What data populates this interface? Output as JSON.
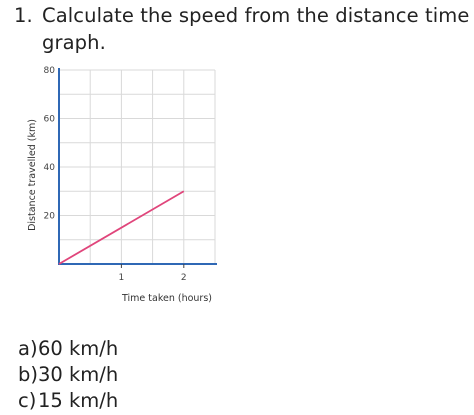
{
  "question": {
    "number": "1.",
    "text": "Calculate the speed from the distance time graph."
  },
  "chart_data": {
    "type": "line",
    "xlabel": "Time taken (hours)",
    "ylabel": "Distance travelled (km)",
    "xlim": [
      0,
      2.5
    ],
    "ylim": [
      0,
      80
    ],
    "x_ticks": [
      1,
      2
    ],
    "y_ticks": [
      20,
      40,
      60,
      80
    ],
    "grid": true,
    "series": [
      {
        "x": [
          0,
          2
        ],
        "y": [
          0,
          30
        ],
        "color": "#e0457b"
      }
    ],
    "axis_color": "#2f68b5",
    "grid_color": "#d9d9d9"
  },
  "answers": [
    {
      "letter": "a)",
      "value": "60 km/h"
    },
    {
      "letter": "b)",
      "value": "30 km/h"
    },
    {
      "letter": "c)",
      "value": "15 km/h"
    }
  ]
}
